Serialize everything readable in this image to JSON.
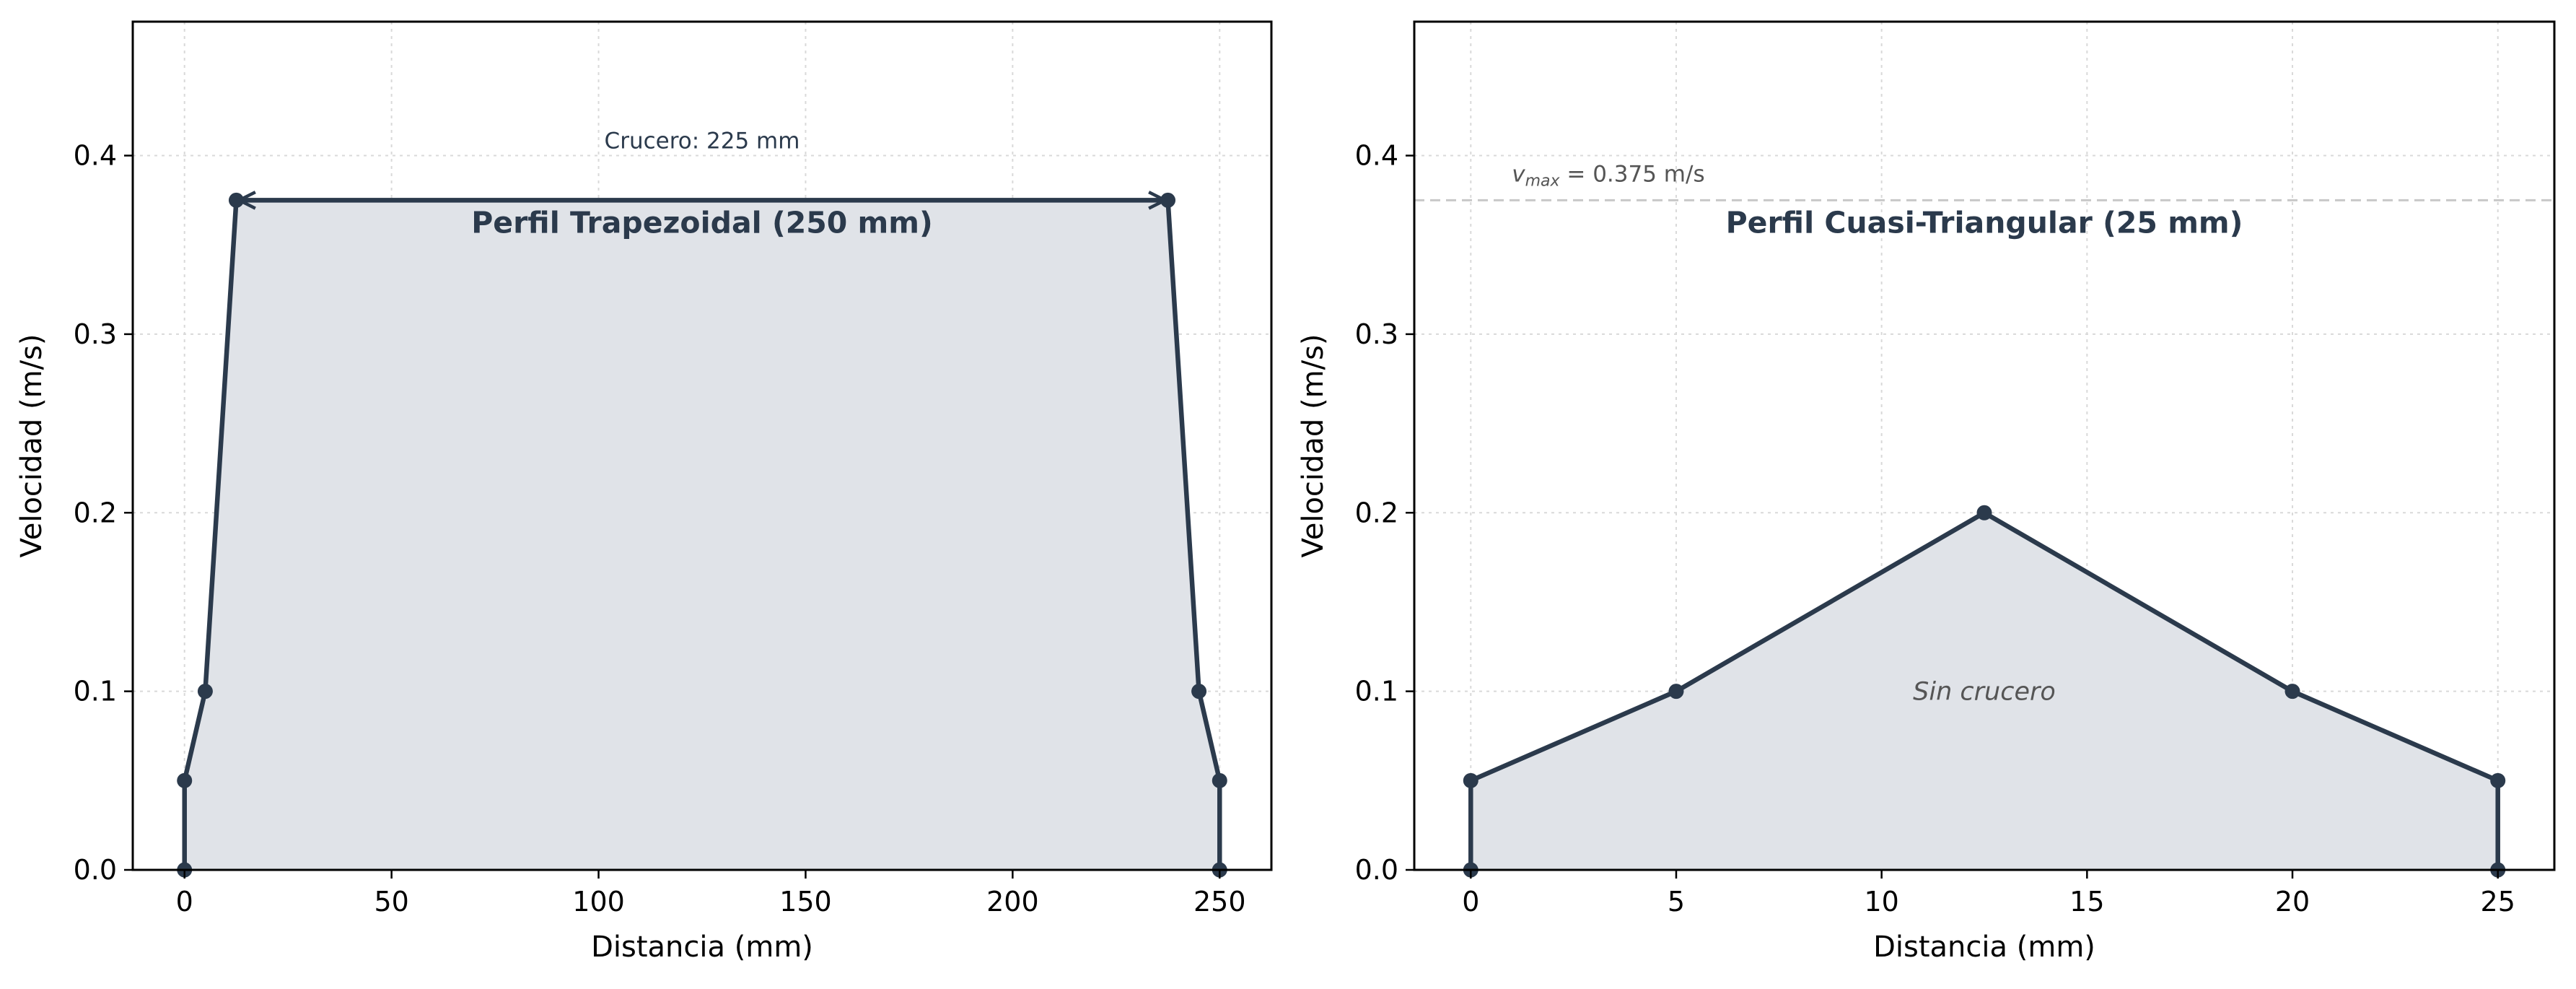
{
  "colors": {
    "line": "#2b3a4c",
    "fill": "#e0e3e8",
    "grid": "#d9d9d9",
    "reference_line": "#c8c8c8",
    "note_text": "#555555"
  },
  "chart_data": [
    {
      "type": "area",
      "title": "Perfil Trapezoidal (250 mm)",
      "xlabel": "Distancia (mm)",
      "ylabel": "Velocidad (m/s)",
      "xlim": [
        -12.5,
        262.5
      ],
      "ylim": [
        0,
        0.475
      ],
      "xticks": [
        0,
        50,
        100,
        150,
        200,
        250
      ],
      "yticks": [
        0.0,
        0.1,
        0.2,
        0.3,
        0.4
      ],
      "xtick_labels": [
        "0",
        "50",
        "100",
        "150",
        "200",
        "250"
      ],
      "ytick_labels": [
        "0.0",
        "0.1",
        "0.2",
        "0.3",
        "0.4"
      ],
      "grid": true,
      "x": [
        0,
        0,
        5,
        12.5,
        237.5,
        245,
        250,
        250
      ],
      "y": [
        0,
        0.05,
        0.1,
        0.375,
        0.375,
        0.1,
        0.05,
        0
      ],
      "annotations": [
        {
          "type": "double-arrow",
          "x_start": 12.5,
          "x_end": 237.5,
          "y": 0.375
        },
        {
          "type": "text",
          "text": "Crucero: 225 mm",
          "x": 125,
          "y": 0.4
        }
      ]
    },
    {
      "type": "area",
      "title": "Perfil Cuasi-Triangular (25 mm)",
      "xlabel": "Distancia (mm)",
      "ylabel": "Velocidad (m/s)",
      "xlim": [
        -1.375,
        26.375
      ],
      "ylim": [
        0,
        0.475
      ],
      "xticks": [
        0,
        5,
        10,
        15,
        20,
        25
      ],
      "yticks": [
        0.0,
        0.1,
        0.2,
        0.3,
        0.4
      ],
      "xtick_labels": [
        "0",
        "5",
        "10",
        "15",
        "20",
        "25"
      ],
      "ytick_labels": [
        "0.0",
        "0.1",
        "0.2",
        "0.3",
        "0.4"
      ],
      "grid": true,
      "x": [
        0,
        0,
        5,
        12.5,
        20,
        25,
        25
      ],
      "y": [
        0,
        0.05,
        0.1,
        0.2,
        0.1,
        0.05,
        0
      ],
      "reference_line": {
        "y": 0.375,
        "label_main": "v",
        "label_sub": "max",
        "label_rest": " = 0.375 m/s"
      },
      "annotations": [
        {
          "type": "text",
          "text": "Sin crucero",
          "x": 12.5,
          "y": 0.1
        }
      ]
    }
  ]
}
